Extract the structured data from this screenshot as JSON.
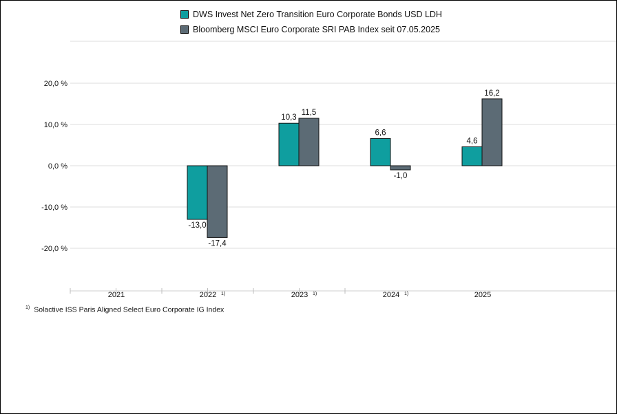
{
  "chart_data": {
    "type": "bar",
    "categories": [
      "2021",
      "2022",
      "2023",
      "2024",
      "2025"
    ],
    "category_notes": [
      "",
      "1)",
      "1)",
      "1)",
      ""
    ],
    "series": [
      {
        "name": "DWS Invest Net Zero Transition Euro Corporate Bonds USD LDH",
        "color": "#0f9e9f",
        "values": [
          null,
          -13.0,
          10.3,
          6.6,
          4.6
        ],
        "labels": [
          "",
          "-13,0",
          "10,3",
          "6,6",
          "4,6"
        ]
      },
      {
        "name": "Bloomberg MSCI Euro Corporate SRI PAB Index seit 07.05.2025",
        "color": "#5c6b75",
        "values": [
          null,
          -17.4,
          11.5,
          -1.0,
          16.2
        ],
        "labels": [
          "",
          "-17,4",
          "11,5",
          "-1,0",
          "16,2"
        ]
      }
    ],
    "yticks": [
      20,
      10,
      0,
      -10,
      -20
    ],
    "ytick_labels": [
      "20,0 %",
      "10,0 %",
      "0,0 %",
      "-10,0 %",
      "-20,0 %"
    ],
    "ylim": [
      -30,
      30
    ],
    "grid": true,
    "legend_position": "top"
  },
  "footnote": {
    "marker": "1)",
    "text": "Solactive ISS Paris Aligned Select Euro Corporate IG Index"
  }
}
